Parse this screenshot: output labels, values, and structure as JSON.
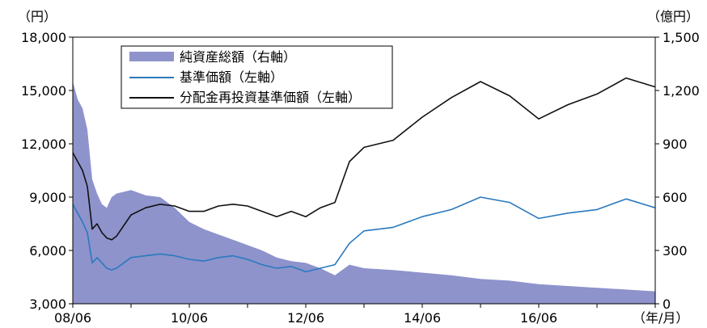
{
  "chart_data": {
    "type": "line",
    "title": "",
    "x_unit_label": "（年/月）",
    "y_left_unit_label": "（円）",
    "y_right_unit_label": "（億円）",
    "x_ticks": [
      "08/06",
      "10/06",
      "12/06",
      "14/06",
      "16/06"
    ],
    "y_left_ticks": [
      "3,000",
      "6,000",
      "9,000",
      "12,000",
      "15,000",
      "18,000"
    ],
    "y_right_ticks": [
      "0",
      "300",
      "600",
      "900",
      "1,200",
      "1,500"
    ],
    "y_left_range": [
      3000,
      18000
    ],
    "y_right_range": [
      0,
      1500
    ],
    "x_range": [
      "2008-06",
      "2018-06"
    ],
    "grid": false,
    "legend_position": "top-left",
    "series": [
      {
        "name": "純資産総額（右軸）",
        "type": "area",
        "axis": "right",
        "color": "#8e93cc",
        "x": [
          "2008-06",
          "2008-07",
          "2008-08",
          "2008-09",
          "2008-10",
          "2008-11",
          "2008-12",
          "2009-01",
          "2009-02",
          "2009-03",
          "2009-06",
          "2009-09",
          "2009-12",
          "2010-03",
          "2010-06",
          "2010-09",
          "2010-12",
          "2011-03",
          "2011-06",
          "2011-09",
          "2011-12",
          "2012-03",
          "2012-06",
          "2012-09",
          "2012-12",
          "2013-03",
          "2013-06",
          "2013-12",
          "2014-06",
          "2014-12",
          "2015-06",
          "2015-12",
          "2016-06",
          "2016-12",
          "2017-06",
          "2017-12",
          "2018-06"
        ],
        "values": [
          1250,
          1150,
          1100,
          980,
          700,
          620,
          560,
          540,
          600,
          620,
          640,
          610,
          600,
          540,
          460,
          420,
          390,
          360,
          330,
          300,
          260,
          240,
          230,
          200,
          160,
          220,
          200,
          190,
          175,
          160,
          140,
          130,
          110,
          100,
          90,
          80,
          70
        ]
      },
      {
        "name": "基準価額（左軸）",
        "type": "line",
        "axis": "left",
        "color": "#2a79bf",
        "x": [
          "2008-06",
          "2008-07",
          "2008-08",
          "2008-09",
          "2008-10",
          "2008-11",
          "2008-12",
          "2009-01",
          "2009-02",
          "2009-03",
          "2009-06",
          "2009-09",
          "2009-12",
          "2010-03",
          "2010-06",
          "2010-09",
          "2010-12",
          "2011-03",
          "2011-06",
          "2011-09",
          "2011-12",
          "2012-03",
          "2012-06",
          "2012-09",
          "2012-12",
          "2013-03",
          "2013-06",
          "2013-12",
          "2014-06",
          "2014-12",
          "2015-06",
          "2015-12",
          "2016-06",
          "2016-12",
          "2017-06",
          "2017-12",
          "2018-06"
        ],
        "values": [
          8600,
          8100,
          7600,
          7000,
          5300,
          5600,
          5300,
          5000,
          4900,
          5000,
          5600,
          5700,
          5800,
          5700,
          5500,
          5400,
          5600,
          5700,
          5500,
          5200,
          5000,
          5100,
          4800,
          5000,
          5200,
          6400,
          7100,
          7300,
          7900,
          8300,
          9000,
          8700,
          7800,
          8100,
          8300,
          8900,
          8400
        ]
      },
      {
        "name": "分配金再投資基準価額（左軸）",
        "type": "line",
        "axis": "left",
        "color": "#111111",
        "x": [
          "2008-06",
          "2008-07",
          "2008-08",
          "2008-09",
          "2008-10",
          "2008-11",
          "2008-12",
          "2009-01",
          "2009-02",
          "2009-03",
          "2009-06",
          "2009-09",
          "2009-12",
          "2010-03",
          "2010-06",
          "2010-09",
          "2010-12",
          "2011-03",
          "2011-06",
          "2011-09",
          "2011-12",
          "2012-03",
          "2012-06",
          "2012-09",
          "2012-12",
          "2013-03",
          "2013-06",
          "2013-12",
          "2014-06",
          "2014-12",
          "2015-06",
          "2015-12",
          "2016-06",
          "2016-12",
          "2017-06",
          "2017-12",
          "2018-06"
        ],
        "values": [
          11500,
          11000,
          10500,
          9600,
          7200,
          7500,
          7000,
          6700,
          6600,
          6800,
          8000,
          8400,
          8600,
          8500,
          8200,
          8200,
          8500,
          8600,
          8500,
          8200,
          7900,
          8200,
          7900,
          8400,
          8700,
          11000,
          11800,
          12200,
          13500,
          14600,
          15500,
          14700,
          13400,
          14200,
          14800,
          15700,
          15200
        ]
      }
    ]
  }
}
